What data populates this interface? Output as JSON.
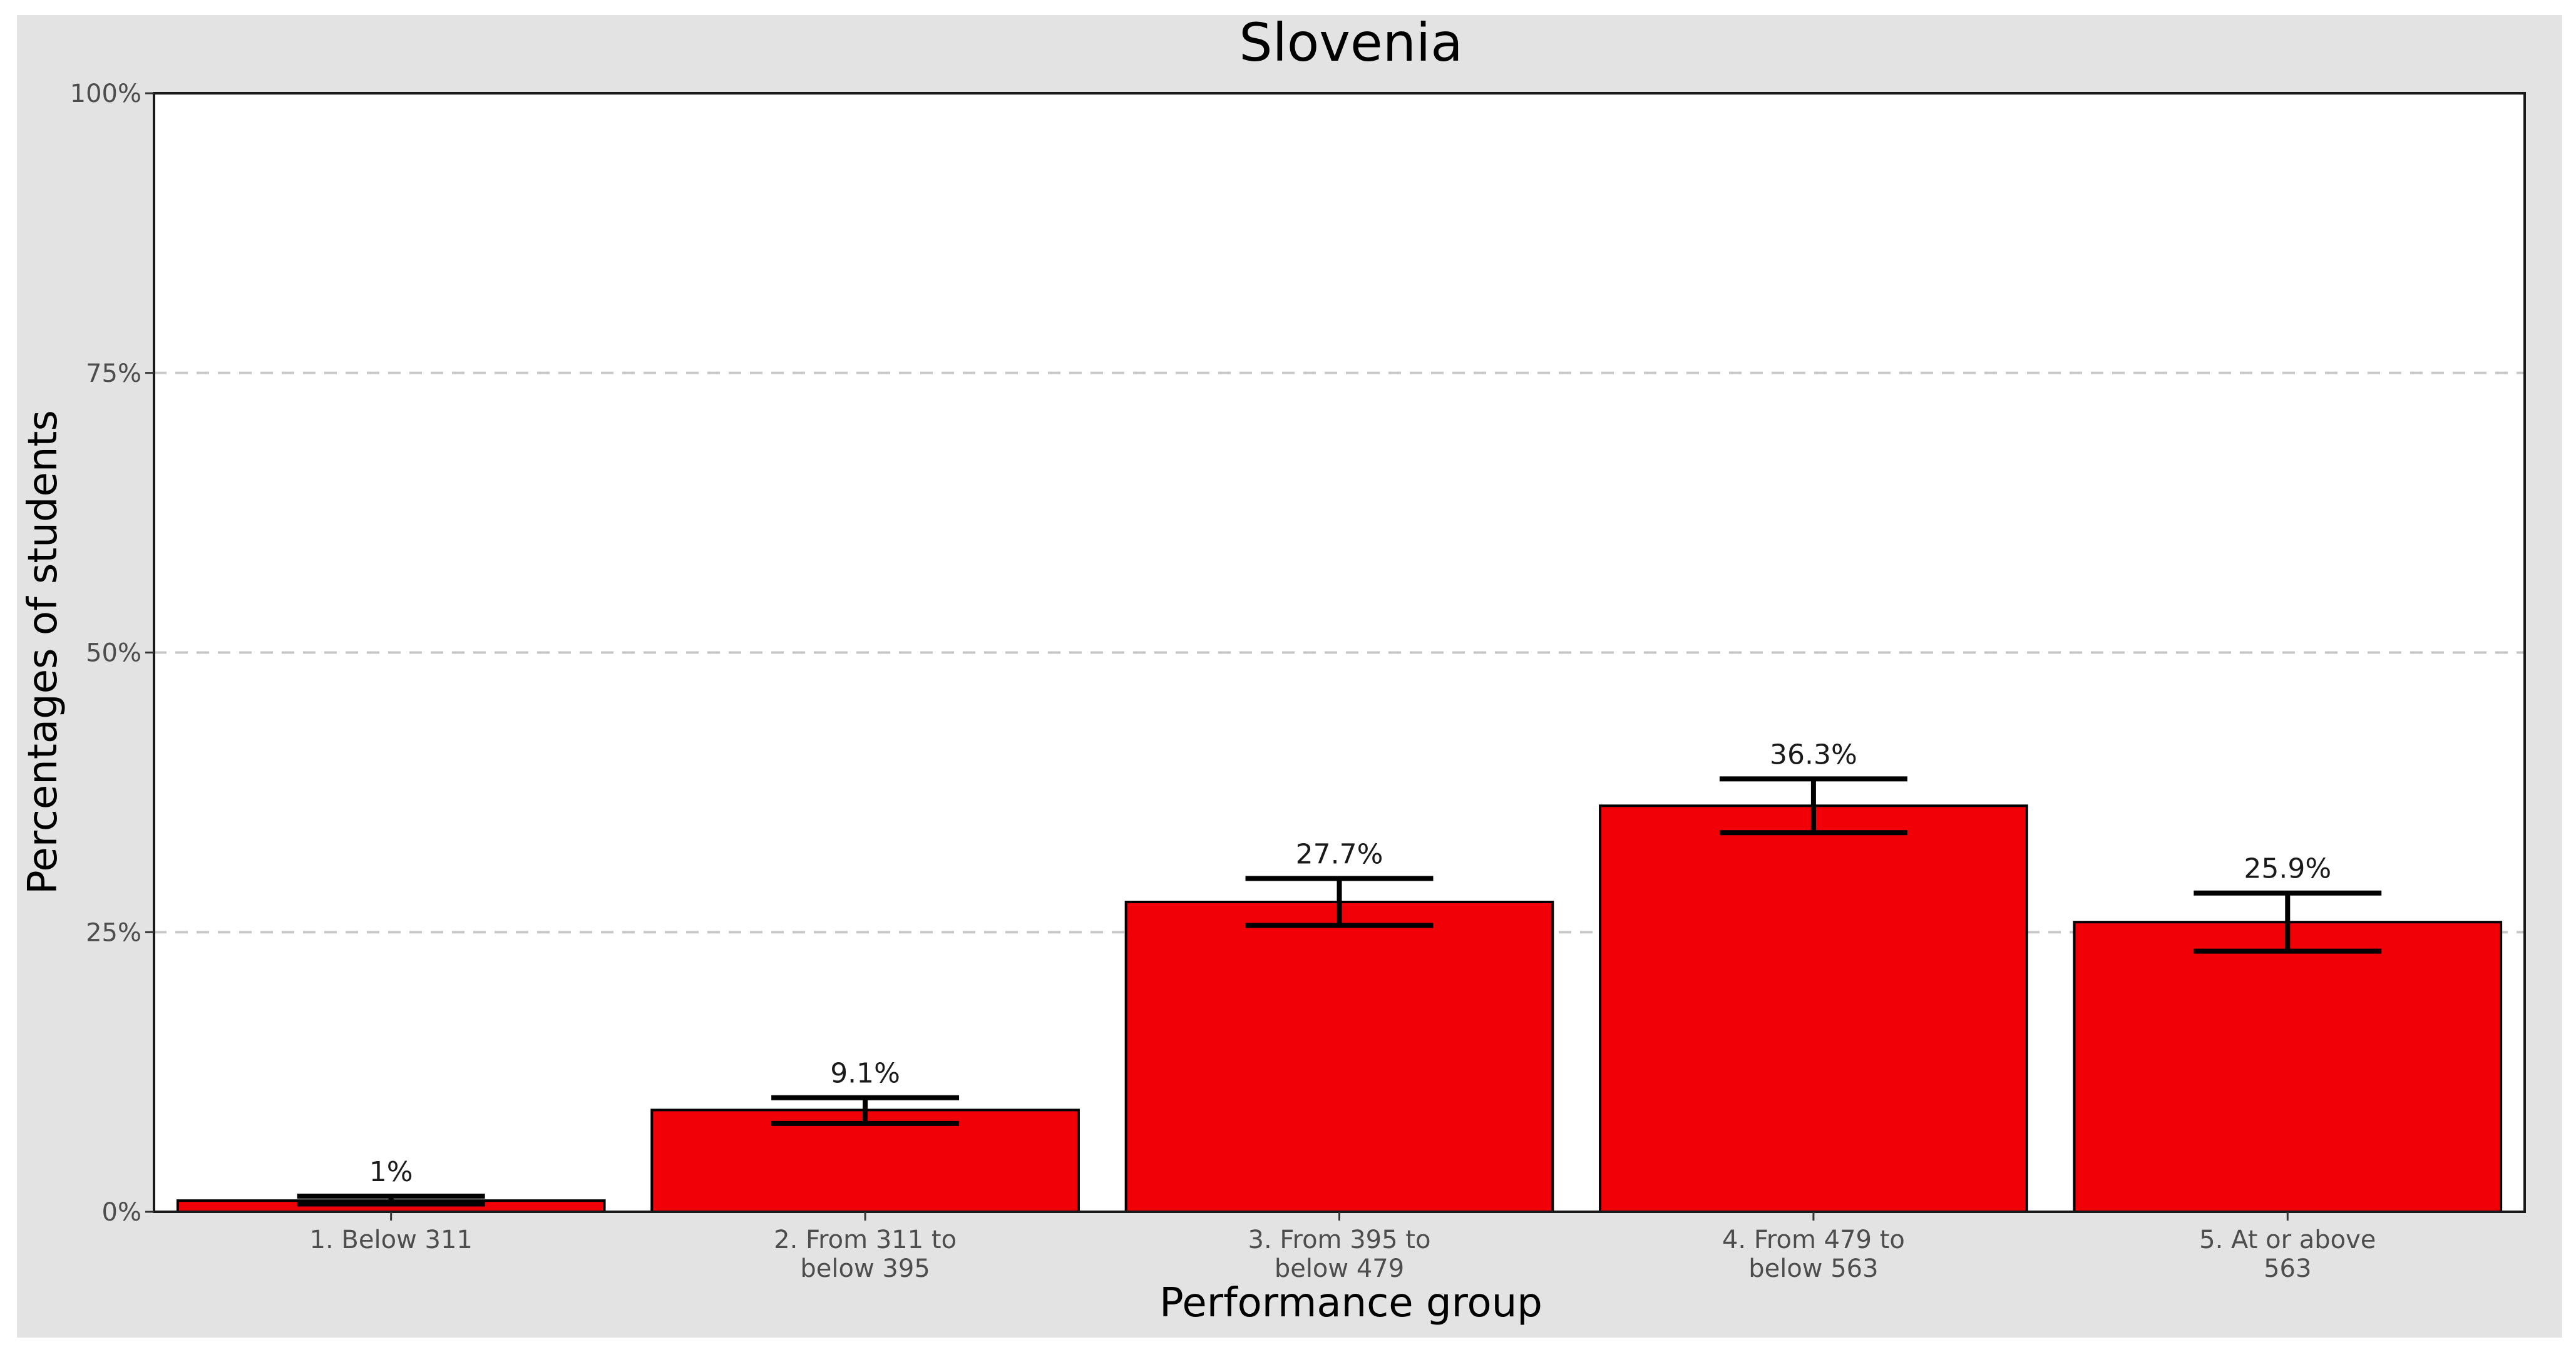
{
  "chart_data": {
    "type": "bar",
    "title": "Slovenia",
    "xlabel": "Performance group",
    "ylabel": "Percentages of students",
    "ylim": [
      0,
      100
    ],
    "yticks": [
      0,
      25,
      50,
      75,
      100
    ],
    "ytick_labels": [
      "0%",
      "25%",
      "50%",
      "75%",
      "100%"
    ],
    "grid": "horizontal dashed",
    "categories": [
      [
        "1. Below 311"
      ],
      [
        "2. From 311 to",
        "below 395"
      ],
      [
        "3. From 395 to",
        "below 479"
      ],
      [
        "4. From 479 to",
        "below 563"
      ],
      [
        "5. At or above",
        "563"
      ]
    ],
    "values": [
      1,
      9.1,
      27.7,
      36.3,
      25.9
    ],
    "error_low": [
      0.7,
      7.9,
      25.6,
      33.9,
      23.3
    ],
    "error_high": [
      1.4,
      10.2,
      29.8,
      38.7,
      28.5
    ],
    "data_labels": [
      "1%",
      "9.1%",
      "27.7%",
      "36.3%",
      "25.9%"
    ],
    "colors": {
      "bar": "#f20008",
      "bar_edge": "#000000",
      "panel_background": "#ffffff",
      "plot_background": "#e3e3e3",
      "grid": "#c8c8c8"
    }
  }
}
